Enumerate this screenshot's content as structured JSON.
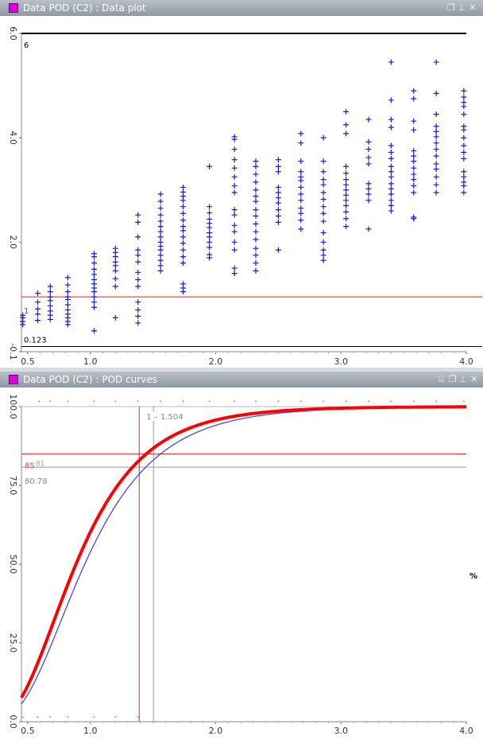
{
  "top_panel": {
    "title": "Data POD (C2) : Data plot",
    "controls": [
      "restore-icon",
      "pin-icon",
      "close-icon"
    ],
    "chart_data": {
      "type": "scatter",
      "x_ticks": [
        "0.5",
        "1.0",
        "2.0",
        "3.0",
        "4.0"
      ],
      "y_ticks": [
        "-0.1",
        "2.0",
        "4.0",
        "6.0"
      ],
      "xlim": [
        0.45,
        4.0
      ],
      "ylim": [
        -0.1,
        6.0
      ],
      "labels": {
        "top": "6",
        "threshold": "1",
        "bottom": "0.123"
      },
      "threshold_y": 0.95,
      "baseline_y": 0.0,
      "series_color": "#1a1adc",
      "threshold_color": "#e02020",
      "points": [
        [
          0.46,
          0.42
        ],
        [
          0.46,
          0.48
        ],
        [
          0.46,
          0.55
        ],
        [
          0.46,
          0.6
        ],
        [
          0.58,
          0.5
        ],
        [
          0.58,
          0.62
        ],
        [
          0.58,
          0.72
        ],
        [
          0.58,
          0.85
        ],
        [
          0.58,
          1.02
        ],
        [
          0.68,
          0.52
        ],
        [
          0.68,
          0.6
        ],
        [
          0.68,
          0.68
        ],
        [
          0.68,
          0.78
        ],
        [
          0.68,
          0.88
        ],
        [
          0.68,
          0.95
        ],
        [
          0.68,
          1.05
        ],
        [
          0.68,
          1.15
        ],
        [
          0.82,
          0.42
        ],
        [
          0.82,
          0.48
        ],
        [
          0.82,
          0.55
        ],
        [
          0.82,
          0.62
        ],
        [
          0.82,
          0.7
        ],
        [
          0.82,
          0.8
        ],
        [
          0.82,
          0.9
        ],
        [
          0.82,
          0.95
        ],
        [
          0.82,
          1.05
        ],
        [
          0.82,
          1.18
        ],
        [
          0.82,
          1.32
        ],
        [
          1.03,
          0.3
        ],
        [
          1.03,
          0.75
        ],
        [
          1.03,
          0.85
        ],
        [
          1.03,
          0.95
        ],
        [
          1.03,
          1.05
        ],
        [
          1.03,
          1.12
        ],
        [
          1.03,
          1.2
        ],
        [
          1.03,
          1.28
        ],
        [
          1.03,
          1.38
        ],
        [
          1.03,
          1.48
        ],
        [
          1.03,
          1.6
        ],
        [
          1.03,
          1.72
        ],
        [
          1.03,
          1.78
        ],
        [
          1.2,
          0.55
        ],
        [
          1.2,
          1.15
        ],
        [
          1.2,
          1.3
        ],
        [
          1.2,
          1.45
        ],
        [
          1.2,
          1.55
        ],
        [
          1.2,
          1.62
        ],
        [
          1.2,
          1.72
        ],
        [
          1.2,
          1.8
        ],
        [
          1.2,
          1.88
        ],
        [
          1.38,
          0.45
        ],
        [
          1.38,
          0.58
        ],
        [
          1.38,
          0.7
        ],
        [
          1.38,
          0.85
        ],
        [
          1.38,
          1.15
        ],
        [
          1.38,
          1.28
        ],
        [
          1.38,
          1.42
        ],
        [
          1.38,
          1.62
        ],
        [
          1.38,
          1.75
        ],
        [
          1.38,
          1.85
        ],
        [
          1.38,
          2.1
        ],
        [
          1.38,
          2.38
        ],
        [
          1.38,
          2.52
        ],
        [
          1.56,
          1.45
        ],
        [
          1.56,
          1.55
        ],
        [
          1.56,
          1.65
        ],
        [
          1.56,
          1.75
        ],
        [
          1.56,
          1.85
        ],
        [
          1.56,
          1.92
        ],
        [
          1.56,
          2.0
        ],
        [
          1.56,
          2.1
        ],
        [
          1.56,
          2.2
        ],
        [
          1.56,
          2.3
        ],
        [
          1.56,
          2.4
        ],
        [
          1.56,
          2.52
        ],
        [
          1.56,
          2.65
        ],
        [
          1.56,
          2.78
        ],
        [
          1.56,
          2.92
        ],
        [
          1.74,
          1.05
        ],
        [
          1.74,
          1.12
        ],
        [
          1.74,
          1.2
        ],
        [
          1.74,
          1.6
        ],
        [
          1.74,
          1.72
        ],
        [
          1.74,
          1.85
        ],
        [
          1.74,
          1.98
        ],
        [
          1.74,
          2.1
        ],
        [
          1.74,
          2.22
        ],
        [
          1.74,
          2.3
        ],
        [
          1.74,
          2.42
        ],
        [
          1.74,
          2.55
        ],
        [
          1.74,
          2.68
        ],
        [
          1.74,
          2.8
        ],
        [
          1.74,
          2.88
        ],
        [
          1.74,
          2.96
        ],
        [
          1.74,
          3.05
        ],
        [
          1.95,
          1.7
        ],
        [
          1.95,
          1.76
        ],
        [
          1.95,
          1.9
        ],
        [
          1.95,
          2.0
        ],
        [
          1.95,
          2.1
        ],
        [
          1.95,
          2.18
        ],
        [
          1.95,
          2.28
        ],
        [
          1.95,
          2.36
        ],
        [
          1.95,
          2.44
        ],
        [
          1.95,
          2.56
        ],
        [
          1.95,
          2.68
        ],
        [
          1.95,
          3.45
        ],
        [
          2.15,
          1.4
        ],
        [
          2.15,
          1.5
        ],
        [
          2.15,
          1.85
        ],
        [
          2.15,
          2.0
        ],
        [
          2.15,
          2.2
        ],
        [
          2.15,
          2.32
        ],
        [
          2.15,
          2.52
        ],
        [
          2.15,
          2.62
        ],
        [
          2.15,
          2.95
        ],
        [
          2.15,
          3.08
        ],
        [
          2.15,
          3.25
        ],
        [
          2.15,
          3.42
        ],
        [
          2.15,
          3.58
        ],
        [
          2.15,
          3.78
        ],
        [
          2.15,
          3.97
        ],
        [
          2.15,
          4.02
        ],
        [
          2.32,
          1.45
        ],
        [
          2.32,
          1.6
        ],
        [
          2.32,
          1.75
        ],
        [
          2.32,
          1.88
        ],
        [
          2.32,
          2.05
        ],
        [
          2.32,
          2.2
        ],
        [
          2.32,
          2.35
        ],
        [
          2.32,
          2.5
        ],
        [
          2.32,
          2.62
        ],
        [
          2.32,
          2.78
        ],
        [
          2.32,
          2.88
        ],
        [
          2.32,
          3.0
        ],
        [
          2.32,
          3.15
        ],
        [
          2.32,
          3.3
        ],
        [
          2.32,
          3.45
        ],
        [
          2.32,
          3.55
        ],
        [
          2.5,
          1.85
        ],
        [
          2.5,
          2.38
        ],
        [
          2.5,
          2.5
        ],
        [
          2.5,
          2.62
        ],
        [
          2.5,
          2.75
        ],
        [
          2.5,
          2.85
        ],
        [
          2.5,
          2.95
        ],
        [
          2.5,
          3.05
        ],
        [
          2.5,
          3.35
        ],
        [
          2.5,
          3.45
        ],
        [
          2.5,
          3.58
        ],
        [
          2.68,
          2.25
        ],
        [
          2.68,
          2.42
        ],
        [
          2.68,
          2.55
        ],
        [
          2.68,
          2.65
        ],
        [
          2.68,
          2.8
        ],
        [
          2.68,
          2.92
        ],
        [
          2.68,
          3.05
        ],
        [
          2.68,
          3.18
        ],
        [
          2.68,
          3.25
        ],
        [
          2.68,
          3.35
        ],
        [
          2.68,
          3.55
        ],
        [
          2.68,
          3.9
        ],
        [
          2.68,
          4.08
        ],
        [
          2.86,
          1.65
        ],
        [
          2.86,
          1.75
        ],
        [
          2.86,
          1.85
        ],
        [
          2.86,
          2.0
        ],
        [
          2.86,
          2.18
        ],
        [
          2.86,
          2.4
        ],
        [
          2.86,
          2.55
        ],
        [
          2.86,
          2.68
        ],
        [
          2.86,
          2.82
        ],
        [
          2.86,
          2.95
        ],
        [
          2.86,
          3.1
        ],
        [
          2.86,
          3.2
        ],
        [
          2.86,
          3.35
        ],
        [
          2.86,
          3.55
        ],
        [
          2.86,
          4.0
        ],
        [
          3.04,
          2.3
        ],
        [
          3.04,
          2.45
        ],
        [
          3.04,
          2.58
        ],
        [
          3.04,
          2.7
        ],
        [
          3.04,
          2.8
        ],
        [
          3.04,
          2.9
        ],
        [
          3.04,
          3.0
        ],
        [
          3.04,
          3.1
        ],
        [
          3.04,
          3.2
        ],
        [
          3.04,
          3.32
        ],
        [
          3.04,
          3.45
        ],
        [
          3.04,
          4.08
        ],
        [
          3.04,
          4.25
        ],
        [
          3.04,
          4.5
        ],
        [
          3.22,
          2.25
        ],
        [
          3.22,
          2.8
        ],
        [
          3.22,
          2.92
        ],
        [
          3.22,
          3.02
        ],
        [
          3.22,
          3.12
        ],
        [
          3.22,
          3.5
        ],
        [
          3.22,
          3.62
        ],
        [
          3.22,
          3.78
        ],
        [
          3.22,
          3.92
        ],
        [
          3.22,
          4.35
        ],
        [
          3.4,
          2.6
        ],
        [
          3.4,
          2.7
        ],
        [
          3.4,
          2.8
        ],
        [
          3.4,
          2.92
        ],
        [
          3.4,
          3.02
        ],
        [
          3.4,
          3.12
        ],
        [
          3.4,
          3.25
        ],
        [
          3.4,
          3.35
        ],
        [
          3.4,
          3.45
        ],
        [
          3.4,
          3.6
        ],
        [
          3.4,
          3.72
        ],
        [
          3.4,
          3.85
        ],
        [
          3.4,
          4.2
        ],
        [
          3.4,
          4.35
        ],
        [
          3.4,
          4.72
        ],
        [
          3.4,
          5.45
        ],
        [
          3.58,
          2.45
        ],
        [
          3.58,
          2.48
        ],
        [
          3.58,
          2.95
        ],
        [
          3.58,
          3.08
        ],
        [
          3.58,
          3.2
        ],
        [
          3.58,
          3.3
        ],
        [
          3.58,
          3.42
        ],
        [
          3.58,
          3.55
        ],
        [
          3.58,
          3.65
        ],
        [
          3.58,
          3.75
        ],
        [
          3.58,
          4.15
        ],
        [
          3.58,
          4.32
        ],
        [
          3.58,
          4.75
        ],
        [
          3.58,
          4.9
        ],
        [
          3.76,
          2.95
        ],
        [
          3.76,
          3.1
        ],
        [
          3.76,
          3.25
        ],
        [
          3.76,
          3.4
        ],
        [
          3.76,
          3.5
        ],
        [
          3.76,
          3.65
        ],
        [
          3.76,
          3.78
        ],
        [
          3.76,
          3.9
        ],
        [
          3.76,
          4.02
        ],
        [
          3.76,
          4.12
        ],
        [
          3.76,
          4.22
        ],
        [
          3.76,
          4.45
        ],
        [
          3.76,
          4.85
        ],
        [
          3.76,
          5.45
        ],
        [
          3.98,
          2.95
        ],
        [
          3.98,
          3.08
        ],
        [
          3.98,
          3.15
        ],
        [
          3.98,
          3.25
        ],
        [
          3.98,
          3.35
        ],
        [
          3.98,
          3.6
        ],
        [
          3.98,
          3.72
        ],
        [
          3.98,
          3.85
        ],
        [
          3.98,
          4.0
        ],
        [
          3.98,
          4.15
        ],
        [
          3.98,
          4.22
        ],
        [
          3.98,
          4.45
        ],
        [
          3.98,
          4.6
        ],
        [
          3.98,
          4.68
        ],
        [
          3.98,
          4.78
        ],
        [
          3.98,
          4.9
        ]
      ]
    }
  },
  "bottom_panel": {
    "title": "Data POD (C2) : POD curves",
    "controls": [
      "database-icon",
      "restore-icon",
      "pin-icon",
      "close-icon"
    ],
    "chart_data": {
      "type": "line",
      "x_ticks": [
        "0.5",
        "1.0",
        "2.0",
        "3.0",
        "4.0"
      ],
      "y_ticks": [
        "0.0",
        "25.0",
        "50.0",
        "75.0",
        "100.0"
      ],
      "xlim": [
        0.45,
        4.0
      ],
      "ylim": [
        0,
        100
      ],
      "y_unit": "%",
      "labels": {
        "target": "85",
        "at_target": "81",
        "actual": "80.78",
        "a90": "1.504"
      },
      "target_pod": 85,
      "actual_pod": 80.78,
      "a_red": 1.39,
      "a_gray": 1.504,
      "series": [
        {
          "color": "#ff0000",
          "width": 4,
          "mu": 0.885,
          "sigma": 0.474
        },
        {
          "color": "#3a3ae6",
          "width": 1.2,
          "mu": 0.955,
          "sigma": 0.474
        }
      ],
      "top_markers": [
        0.59,
        0.68,
        0.82,
        1.03,
        1.2,
        1.38,
        1.56,
        1.74,
        1.95,
        2.15,
        2.32,
        2.5,
        2.68,
        2.86,
        3.04,
        3.22,
        3.4,
        3.58,
        3.76,
        3.98
      ],
      "bottom_markers": [
        0.46,
        0.58,
        0.68,
        0.82,
        1.03,
        1.2,
        1.38
      ]
    }
  }
}
